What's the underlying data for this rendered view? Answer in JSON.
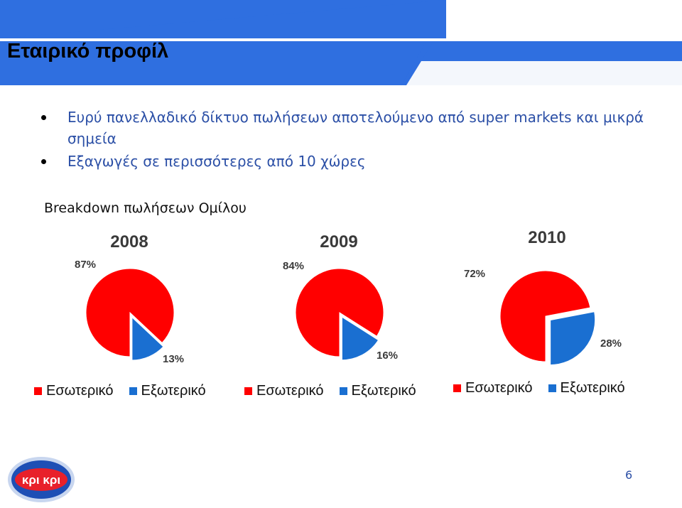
{
  "slide": {
    "title": "Εταιρικό προφίλ",
    "bullets": [
      "Ευρύ πανελλαδικό δίκτυο πωλήσεων αποτελούμενο από super markets και μικρά σημεία",
      "Εξαγωγές σε περισσότερες από 10 χώρες"
    ],
    "subtitle": "Breakdown πωλήσεων Ομίλου",
    "page_number": "6",
    "logo_text": "κρι κρι"
  },
  "colors": {
    "header_blue": "#2f6fe0",
    "domestic": "#ff0000",
    "exports": "#1a6fd1",
    "text_blue": "#2b4fa6"
  },
  "chart_data": [
    {
      "type": "pie",
      "title": "2008",
      "labels": [
        "Εσωτερικό",
        "Εξωτερικό"
      ],
      "values": [
        87,
        13
      ],
      "value_labels": [
        "87%",
        "13%"
      ],
      "legend": "bottom"
    },
    {
      "type": "pie",
      "title": "2009",
      "labels": [
        "Εσωτερικό",
        "Εξωτερικό"
      ],
      "values": [
        84,
        16
      ],
      "value_labels": [
        "84%",
        "16%"
      ],
      "legend": "bottom"
    },
    {
      "type": "pie",
      "title": "2010",
      "labels": [
        "Εσωτερικό",
        "Εξωτερικό"
      ],
      "values": [
        72,
        28
      ],
      "value_labels": [
        "72%",
        "28%"
      ],
      "legend": "bottom"
    }
  ]
}
